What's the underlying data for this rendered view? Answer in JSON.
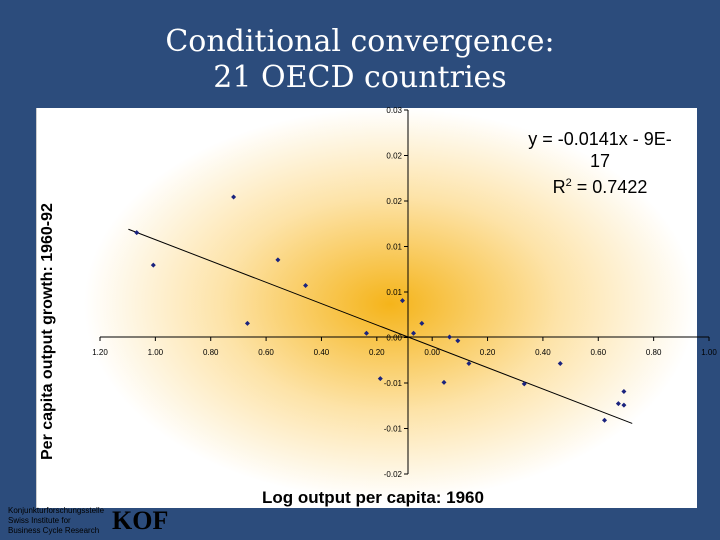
{
  "slide": {
    "title_line1": "Conditional convergence:",
    "title_line2": "21 OECD countries"
  },
  "chart_data": {
    "type": "scatter",
    "title": "",
    "xlabel": "Log output per capita: 1960",
    "ylabel": "Per capita output growth: 1960-92",
    "xlim": [
      -1.2,
      1.0
    ],
    "ylim": [
      -0.02,
      0.03
    ],
    "x_tick_labels": [
      "1.20",
      "1.00",
      "0.80",
      "0.60",
      "0.40",
      "0.20",
      "0.00",
      "0.20",
      "0.40",
      "0.60",
      "0.80",
      "1.00"
    ],
    "y_tick_labels": [
      "0.03",
      "0.02",
      "0.02",
      "0.01",
      "0.01",
      "0.00",
      "-0.01",
      "-0.01",
      "-0.02"
    ],
    "points": [
      {
        "x": -0.98,
        "y": 0.0138
      },
      {
        "x": -0.92,
        "y": 0.0095
      },
      {
        "x": -0.63,
        "y": 0.0185
      },
      {
        "x": -0.58,
        "y": 0.0018
      },
      {
        "x": -0.47,
        "y": 0.0102
      },
      {
        "x": -0.37,
        "y": 0.0068
      },
      {
        "x": -0.15,
        "y": 0.0005
      },
      {
        "x": -0.02,
        "y": 0.0048
      },
      {
        "x": -0.1,
        "y": -0.0055
      },
      {
        "x": 0.02,
        "y": 0.0005
      },
      {
        "x": 0.05,
        "y": 0.0018
      },
      {
        "x": 0.13,
        "y": -0.006
      },
      {
        "x": 0.15,
        "y": 0.0
      },
      {
        "x": 0.18,
        "y": -0.0005
      },
      {
        "x": 0.22,
        "y": -0.0035
      },
      {
        "x": 0.42,
        "y": -0.0062
      },
      {
        "x": 0.55,
        "y": -0.0035
      },
      {
        "x": 0.71,
        "y": -0.011
      },
      {
        "x": 0.76,
        "y": -0.0088
      },
      {
        "x": 0.78,
        "y": -0.0072
      },
      {
        "x": 0.78,
        "y": -0.009
      }
    ],
    "trendline": {
      "slope": -0.0141,
      "intercept": 0
    },
    "equation": "y = -0.0141x - 9E-17",
    "r_squared_label": "R",
    "r_squared_exponent": "2",
    "r_squared_value": " = 0.7422",
    "grid": false,
    "colors": {
      "background": "#2c4c7c",
      "glow": "#f5b41a",
      "points": "#1a237e"
    }
  },
  "logo": {
    "line1": "Konjunkturforschungsstelle",
    "line2": "Swiss Institute for",
    "line3": "Business Cycle Research",
    "mark": "KOF"
  }
}
